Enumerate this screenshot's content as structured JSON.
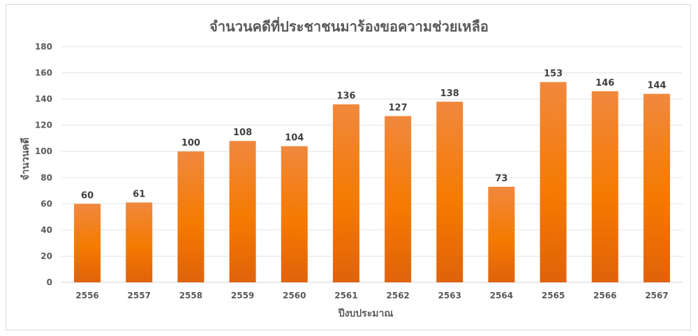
{
  "chart_data": {
    "type": "bar",
    "title": "จำนวนคดีที่ประชาชนมาร้องขอความช่วยเหลือ",
    "xlabel": "ปีงบประมาณ",
    "ylabel": "จำนวนคดี",
    "categories": [
      "2556",
      "2557",
      "2558",
      "2559",
      "2560",
      "2561",
      "2562",
      "2563",
      "2564",
      "2565",
      "2566",
      "2567"
    ],
    "values": [
      60,
      61,
      100,
      108,
      104,
      136,
      127,
      138,
      73,
      153,
      146,
      144
    ],
    "ylim": [
      0,
      180
    ],
    "yticks": [
      "0",
      "20",
      "40",
      "60",
      "80",
      "100",
      "120",
      "140",
      "160",
      "180"
    ],
    "grid": true,
    "legend": "none",
    "bar_color_top": "#f0883e",
    "bar_color_mid": "#f57a00",
    "bar_color_bottom": "#e0620a"
  }
}
